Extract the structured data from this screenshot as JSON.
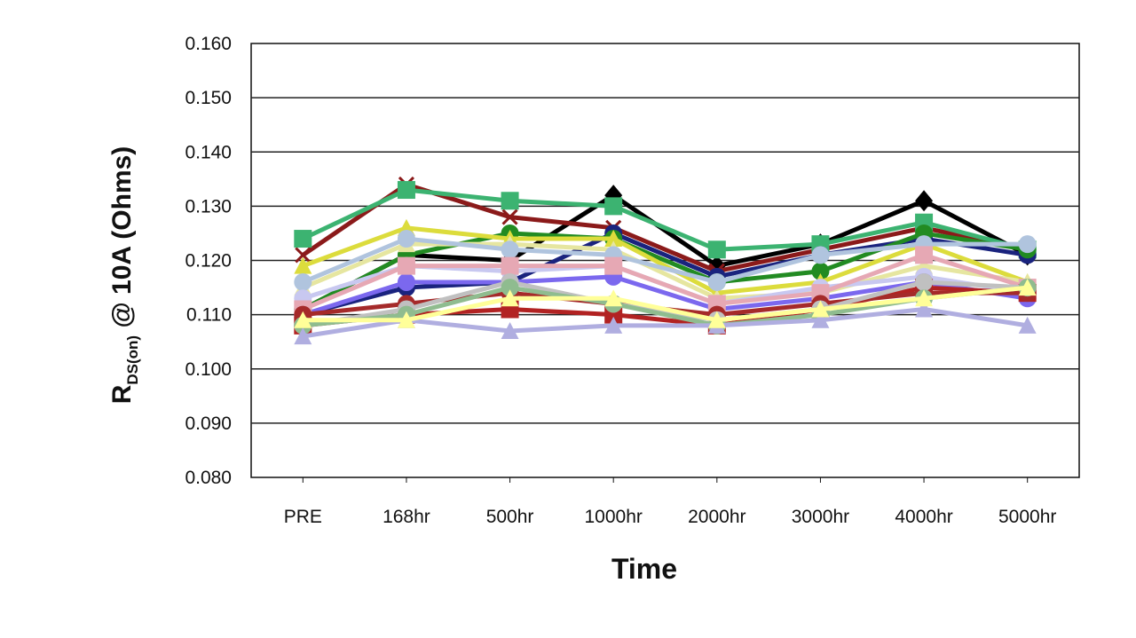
{
  "chart_data": {
    "type": "line",
    "title": "",
    "xlabel": "Time",
    "ylabel": {
      "main": "R",
      "subscript": "DS(on)",
      "rest": " @ 10A (Ohms)"
    },
    "categories": [
      "PRE",
      "168hr",
      "500hr",
      "1000hr",
      "2000hr",
      "3000hr",
      "4000hr",
      "5000hr"
    ],
    "ylim": [
      0.08,
      0.16
    ],
    "yticks": [
      "0.080",
      "0.090",
      "0.100",
      "0.110",
      "0.120",
      "0.130",
      "0.140",
      "0.150",
      "0.160"
    ],
    "grid": "horizontal",
    "legend": "none",
    "series": [
      {
        "color": "#000000",
        "marker": "diamond",
        "values": [
          0.111,
          0.121,
          0.12,
          0.132,
          0.119,
          0.123,
          0.131,
          0.121
        ]
      },
      {
        "color": "#8b1a1a",
        "marker": "x",
        "values": [
          0.121,
          0.134,
          0.128,
          0.126,
          0.118,
          0.122,
          0.126,
          0.122
        ]
      },
      {
        "color": "#3cb371",
        "marker": "square",
        "values": [
          0.124,
          0.133,
          0.131,
          0.13,
          0.122,
          0.123,
          0.127,
          0.122
        ]
      },
      {
        "color": "#1a237e",
        "marker": "circle",
        "values": [
          0.11,
          0.115,
          0.116,
          0.125,
          0.117,
          0.121,
          0.124,
          0.121
        ]
      },
      {
        "color": "#228b22",
        "marker": "circle",
        "values": [
          0.111,
          0.121,
          0.125,
          0.124,
          0.116,
          0.118,
          0.125,
          0.122
        ]
      },
      {
        "color": "#dcdc3c",
        "marker": "triangle",
        "values": [
          0.119,
          0.126,
          0.124,
          0.124,
          0.114,
          0.116,
          0.123,
          0.116
        ]
      },
      {
        "color": "#e6e6a0",
        "marker": "triangle",
        "values": [
          0.115,
          0.123,
          0.123,
          0.122,
          0.113,
          0.114,
          0.119,
          0.116
        ]
      },
      {
        "color": "#b0c4de",
        "marker": "circle",
        "values": [
          0.116,
          0.124,
          0.122,
          0.121,
          0.116,
          0.121,
          0.123,
          0.123
        ]
      },
      {
        "color": "#c8c8f0",
        "marker": "circle",
        "values": [
          0.113,
          0.119,
          0.118,
          0.119,
          0.112,
          0.115,
          0.117,
          0.114
        ]
      },
      {
        "color": "#7b68ee",
        "marker": "circle",
        "values": [
          0.11,
          0.116,
          0.116,
          0.117,
          0.111,
          0.113,
          0.116,
          0.113
        ]
      },
      {
        "color": "#e6a8b4",
        "marker": "square",
        "values": [
          0.111,
          0.119,
          0.119,
          0.119,
          0.112,
          0.114,
          0.121,
          0.115
        ]
      },
      {
        "color": "#b22222",
        "marker": "square",
        "values": [
          0.108,
          0.11,
          0.111,
          0.11,
          0.108,
          0.111,
          0.115,
          0.114
        ]
      },
      {
        "color": "#a52a2a",
        "marker": "circle",
        "values": [
          0.11,
          0.112,
          0.114,
          0.112,
          0.11,
          0.112,
          0.114,
          0.114
        ]
      },
      {
        "color": "#c0c0c0",
        "marker": "circle",
        "values": [
          0.108,
          0.111,
          0.116,
          0.112,
          0.109,
          0.111,
          0.116,
          0.115
        ]
      },
      {
        "color": "#8fbc8f",
        "marker": "circle",
        "values": [
          0.108,
          0.11,
          0.115,
          0.112,
          0.108,
          0.11,
          0.113,
          0.115
        ]
      },
      {
        "color": "#b0aee0",
        "marker": "triangle",
        "values": [
          0.106,
          0.109,
          0.107,
          0.108,
          0.108,
          0.109,
          0.111,
          0.108
        ]
      },
      {
        "color": "#ffff99",
        "marker": "triangle",
        "values": [
          0.109,
          0.109,
          0.113,
          0.113,
          0.109,
          0.111,
          0.113,
          0.115
        ]
      }
    ]
  }
}
